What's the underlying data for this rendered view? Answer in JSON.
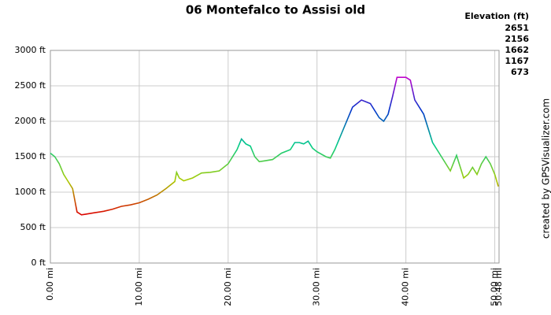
{
  "chart_data": {
    "type": "line",
    "title": "06 Montefalco to Assisi old",
    "legend_title": "Elevation (ft)",
    "color_scale": [
      {
        "value": 2651,
        "color": "#cc00cc"
      },
      {
        "value": 2156,
        "color": "#0033cc"
      },
      {
        "value": 1662,
        "color": "#00cc88"
      },
      {
        "value": 1167,
        "color": "#aacc00"
      },
      {
        "value": 673,
        "color": "#dd0000"
      }
    ],
    "credit": "created by GPSVisualizer.com",
    "x": [
      0,
      0.5,
      1,
      1.5,
      2,
      2.5,
      3,
      3.5,
      4,
      5,
      6,
      7,
      8,
      9,
      10,
      11,
      12,
      13,
      14,
      14.2,
      14.5,
      15,
      16,
      17,
      18,
      19,
      20,
      21,
      21.5,
      22,
      22.5,
      23,
      23.5,
      24,
      25,
      26,
      27,
      27.5,
      28,
      28.5,
      29,
      29.5,
      30,
      31,
      31.5,
      32,
      33,
      34,
      35,
      36,
      37,
      37.5,
      38,
      38.5,
      39,
      40,
      40.5,
      41,
      42,
      43,
      44,
      45,
      45.7,
      46.5,
      47,
      47.5,
      48,
      48.5,
      49,
      49.5,
      50,
      50.4
    ],
    "values": [
      1550,
      1500,
      1400,
      1250,
      1150,
      1050,
      720,
      680,
      690,
      710,
      730,
      760,
      800,
      820,
      850,
      900,
      960,
      1050,
      1150,
      1280,
      1200,
      1160,
      1200,
      1270,
      1280,
      1300,
      1400,
      1600,
      1750,
      1680,
      1650,
      1500,
      1430,
      1440,
      1460,
      1550,
      1600,
      1700,
      1700,
      1680,
      1720,
      1620,
      1570,
      1500,
      1480,
      1600,
      1900,
      2200,
      2300,
      2250,
      2050,
      2000,
      2100,
      2350,
      2620,
      2620,
      2580,
      2300,
      2100,
      1700,
      1500,
      1300,
      1520,
      1200,
      1250,
      1350,
      1250,
      1400,
      1500,
      1400,
      1250,
      1080
    ],
    "xlim": [
      0,
      50.48
    ],
    "ylim": [
      0,
      3000
    ],
    "xticks": [
      {
        "value": 0,
        "label": "0.00 mi"
      },
      {
        "value": 10,
        "label": "10.00 mi"
      },
      {
        "value": 20,
        "label": "20.00 mi"
      },
      {
        "value": 30,
        "label": "30.00 mi"
      },
      {
        "value": 40,
        "label": "40.00 mi"
      },
      {
        "value": 50,
        "label": "50.00 mi"
      },
      {
        "value": 50.48,
        "label": "50.48 mi"
      }
    ],
    "yticks": [
      {
        "value": 0,
        "label": "0 ft"
      },
      {
        "value": 500,
        "label": "500 ft"
      },
      {
        "value": 1000,
        "label": "1000 ft"
      },
      {
        "value": 1500,
        "label": "1500 ft"
      },
      {
        "value": 2000,
        "label": "2000 ft"
      },
      {
        "value": 2500,
        "label": "2500 ft"
      },
      {
        "value": 3000,
        "label": "3000 ft"
      }
    ],
    "grid": true
  }
}
